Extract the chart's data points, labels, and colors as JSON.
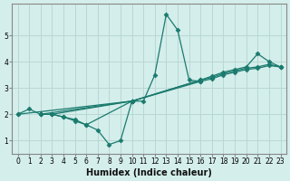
{
  "xlabel": "Humidex (Indice chaleur)",
  "bg_color": "#d4eeeb",
  "grid_color": "#b8d8d4",
  "line_color": "#1a7a6e",
  "xlim": [
    -0.5,
    23.5
  ],
  "ylim": [
    0.5,
    6.2
  ],
  "xticks": [
    0,
    1,
    2,
    3,
    4,
    5,
    6,
    7,
    8,
    9,
    10,
    11,
    12,
    13,
    14,
    15,
    16,
    17,
    18,
    19,
    20,
    21,
    22,
    23
  ],
  "yticks": [
    1,
    2,
    3,
    4,
    5
  ],
  "series": [
    {
      "x": [
        0,
        1,
        2,
        3,
        4,
        5,
        6,
        7,
        8,
        9,
        10
      ],
      "y": [
        2.0,
        2.2,
        2.0,
        2.0,
        1.9,
        1.8,
        1.6,
        1.4,
        0.85,
        1.0,
        2.5
      ]
    },
    {
      "x": [
        2,
        3,
        4,
        5,
        6,
        10,
        11,
        12,
        13,
        14,
        15,
        16
      ],
      "y": [
        2.0,
        2.0,
        1.9,
        1.75,
        1.6,
        2.5,
        2.5,
        3.5,
        5.8,
        5.2,
        3.3,
        3.25
      ]
    },
    {
      "x": [
        0,
        10,
        16,
        17,
        18,
        19,
        20,
        21,
        22,
        23
      ],
      "y": [
        2.0,
        2.5,
        3.3,
        3.4,
        3.55,
        3.65,
        3.75,
        3.8,
        3.9,
        3.8
      ]
    },
    {
      "x": [
        2,
        10,
        16,
        17,
        18,
        19,
        20,
        21,
        22,
        23
      ],
      "y": [
        2.0,
        2.5,
        3.25,
        3.35,
        3.5,
        3.6,
        3.7,
        3.75,
        3.85,
        3.8
      ]
    },
    {
      "x": [
        3,
        10,
        16,
        17,
        18,
        19,
        20,
        21,
        22,
        23
      ],
      "y": [
        2.0,
        2.5,
        3.3,
        3.45,
        3.6,
        3.7,
        3.8,
        4.3,
        4.0,
        3.8
      ]
    }
  ]
}
